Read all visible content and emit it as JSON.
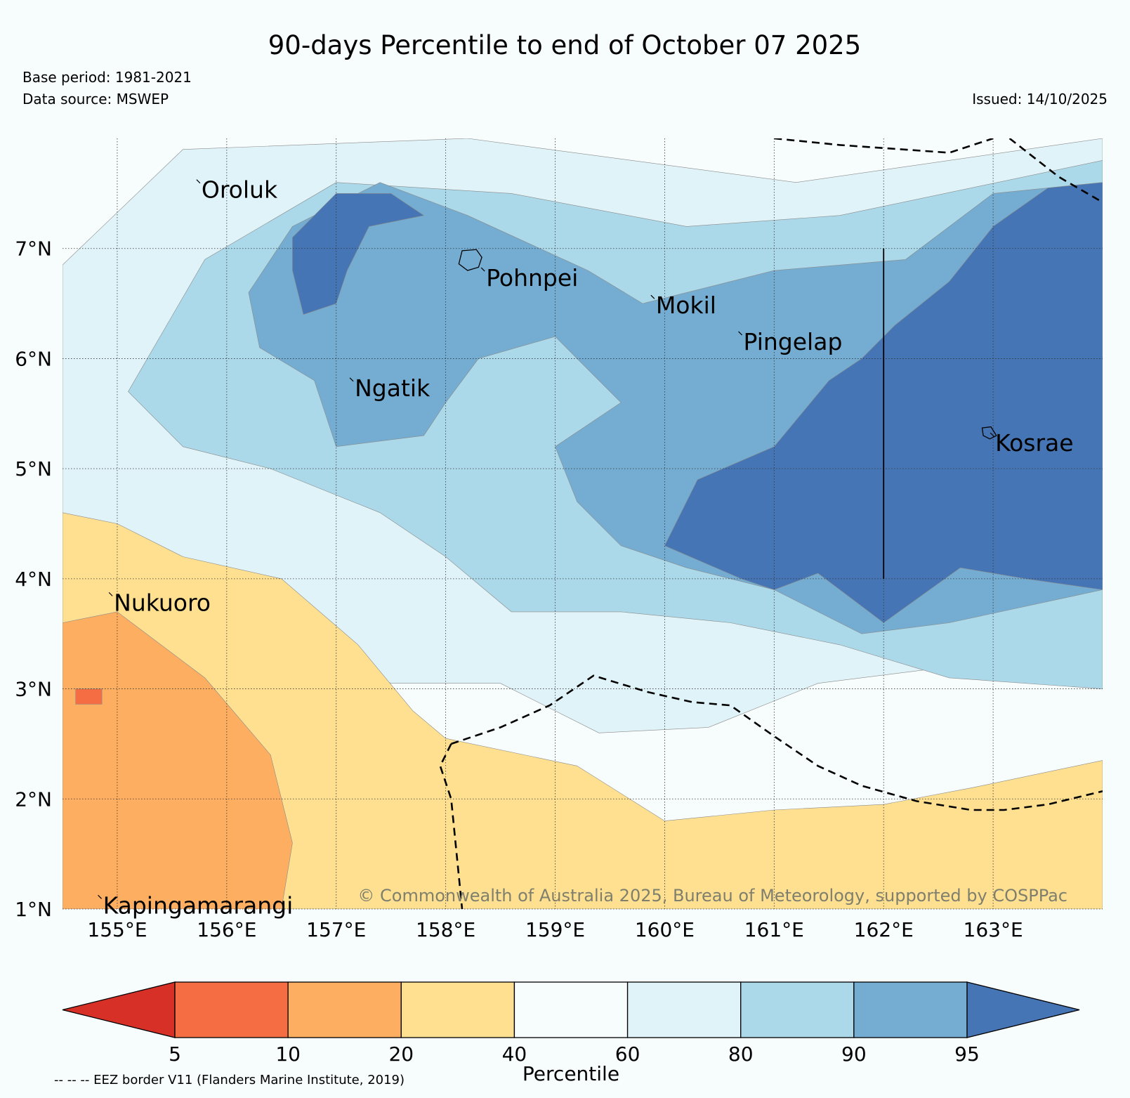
{
  "header": {
    "title": "90-days Percentile to end of October 07 2025",
    "base_period": "Base period: 1981-2021",
    "data_source": "Data source: MSWEP",
    "issued": "Issued: 14/10/2025"
  },
  "map": {
    "lon_range": [
      154.5,
      164.0
    ],
    "lat_range": [
      1.0,
      8.0
    ],
    "lon_ticks": [
      {
        "value": 155,
        "label": "155°E"
      },
      {
        "value": 156,
        "label": "156°E"
      },
      {
        "value": 157,
        "label": "157°E"
      },
      {
        "value": 158,
        "label": "158°E"
      },
      {
        "value": 159,
        "label": "159°E"
      },
      {
        "value": 160,
        "label": "160°E"
      },
      {
        "value": 161,
        "label": "161°E"
      },
      {
        "value": 162,
        "label": "162°E"
      },
      {
        "value": 163,
        "label": "163°E"
      }
    ],
    "lat_ticks": [
      {
        "value": 7,
        "label": "7°N"
      },
      {
        "value": 6,
        "label": "6°N"
      },
      {
        "value": 5,
        "label": "5°N"
      },
      {
        "value": 4,
        "label": "4°N"
      },
      {
        "value": 3,
        "label": "3°N"
      },
      {
        "value": 2,
        "label": "2°N"
      },
      {
        "value": 1,
        "label": "1°N"
      }
    ],
    "places": [
      {
        "name": "Oroluk",
        "lon": 155.75,
        "lat": 7.6
      },
      {
        "name": "Pohnpei",
        "lon": 158.35,
        "lat": 6.8
      },
      {
        "name": "Mokil",
        "lon": 159.9,
        "lat": 6.55
      },
      {
        "name": "Pingelap",
        "lon": 160.7,
        "lat": 6.22
      },
      {
        "name": "Ngatik",
        "lon": 157.15,
        "lat": 5.8
      },
      {
        "name": "Kosrae",
        "lon": 163.0,
        "lat": 5.3
      },
      {
        "name": "Nukuoro",
        "lon": 154.95,
        "lat": 3.85
      },
      {
        "name": "Kapingamarangi",
        "lon": 154.85,
        "lat": 1.1
      }
    ],
    "eez_borders": [
      [
        [
          161.0,
          8.0
        ],
        [
          161.6,
          7.94
        ],
        [
          162.6,
          7.87
        ],
        [
          163.0,
          8.0
        ]
      ],
      [
        [
          163.15,
          8.0
        ],
        [
          163.6,
          7.65
        ],
        [
          164.0,
          7.42
        ]
      ],
      [
        [
          158.05,
          2.5
        ],
        [
          158.5,
          2.65
        ],
        [
          158.95,
          2.85
        ],
        [
          159.35,
          3.12
        ],
        [
          159.85,
          2.97
        ],
        [
          160.25,
          2.88
        ],
        [
          160.6,
          2.85
        ],
        [
          161.0,
          2.57
        ],
        [
          161.4,
          2.3
        ],
        [
          161.8,
          2.12
        ],
        [
          162.3,
          1.98
        ],
        [
          162.8,
          1.9
        ],
        [
          163.1,
          1.9
        ],
        [
          163.5,
          1.95
        ],
        [
          164.0,
          2.07
        ]
      ],
      [
        [
          158.05,
          2.5
        ],
        [
          157.95,
          2.3
        ],
        [
          158.05,
          2.0
        ],
        [
          158.1,
          1.5
        ],
        [
          158.15,
          1.0
        ]
      ]
    ],
    "border_segment": {
      "lon": 162.0,
      "lat_from": 7.0,
      "lat_to": 4.0
    },
    "regions": [
      {
        "category": 5,
        "polygon": [
          [
            154.5,
            6.85
          ],
          [
            155.6,
            7.9
          ],
          [
            158.2,
            8.0
          ],
          [
            161.2,
            7.6
          ],
          [
            164.0,
            8.0
          ],
          [
            164.0,
            3.6
          ],
          [
            162.6,
            3.2
          ],
          [
            161.4,
            3.05
          ],
          [
            160.4,
            2.65
          ],
          [
            159.4,
            2.6
          ],
          [
            158.5,
            3.05
          ],
          [
            157.5,
            3.05
          ],
          [
            156.5,
            3.5
          ],
          [
            155.5,
            3.8
          ],
          [
            154.5,
            4.1
          ]
        ]
      },
      {
        "category": 6,
        "polygon": [
          [
            155.1,
            5.7
          ],
          [
            155.8,
            6.9
          ],
          [
            157.0,
            7.6
          ],
          [
            158.6,
            7.5
          ],
          [
            160.2,
            7.2
          ],
          [
            161.6,
            7.3
          ],
          [
            164.0,
            7.8
          ],
          [
            164.0,
            3.0
          ],
          [
            162.6,
            3.1
          ],
          [
            161.6,
            3.4
          ],
          [
            160.6,
            3.6
          ],
          [
            159.6,
            3.7
          ],
          [
            158.6,
            3.7
          ],
          [
            158.0,
            4.2
          ],
          [
            157.4,
            4.6
          ],
          [
            156.4,
            5.0
          ],
          [
            155.6,
            5.2
          ]
        ]
      },
      {
        "category": 7,
        "polygon": [
          [
            156.2,
            6.6
          ],
          [
            156.6,
            7.2
          ],
          [
            157.4,
            7.6
          ],
          [
            158.2,
            7.3
          ],
          [
            159.3,
            6.8
          ],
          [
            159.8,
            6.5
          ],
          [
            161.0,
            6.8
          ],
          [
            162.2,
            6.9
          ],
          [
            163.0,
            7.5
          ],
          [
            164.0,
            7.6
          ],
          [
            164.0,
            3.9
          ],
          [
            162.6,
            3.6
          ],
          [
            161.8,
            3.5
          ],
          [
            161.0,
            3.9
          ],
          [
            160.2,
            4.1
          ],
          [
            159.6,
            4.3
          ],
          [
            159.2,
            4.7
          ],
          [
            159.0,
            5.2
          ],
          [
            159.6,
            5.6
          ],
          [
            159.0,
            6.2
          ],
          [
            158.3,
            6.0
          ],
          [
            158.0,
            5.6
          ],
          [
            157.8,
            5.3
          ],
          [
            157.0,
            5.2
          ],
          [
            156.8,
            5.8
          ],
          [
            156.3,
            6.1
          ]
        ]
      },
      {
        "category": 8,
        "polygon": [
          [
            164.0,
            7.6
          ],
          [
            163.5,
            7.55
          ],
          [
            163.0,
            7.2
          ],
          [
            162.6,
            6.7
          ],
          [
            162.1,
            6.3
          ],
          [
            161.8,
            6.0
          ],
          [
            161.5,
            5.8
          ],
          [
            161.0,
            5.2
          ],
          [
            160.3,
            4.9
          ],
          [
            160.0,
            4.3
          ],
          [
            160.7,
            4.0
          ],
          [
            161.0,
            3.9
          ],
          [
            161.4,
            4.05
          ],
          [
            162.0,
            3.6
          ],
          [
            162.7,
            4.1
          ],
          [
            163.3,
            4.0
          ],
          [
            164.0,
            3.9
          ]
        ]
      },
      {
        "category": 8,
        "polygon": [
          [
            156.6,
            7.1
          ],
          [
            157.0,
            7.5
          ],
          [
            157.5,
            7.5
          ],
          [
            157.8,
            7.3
          ],
          [
            157.3,
            7.2
          ],
          [
            157.1,
            6.8
          ],
          [
            157.0,
            6.5
          ],
          [
            156.7,
            6.4
          ],
          [
            156.6,
            6.8
          ]
        ]
      },
      {
        "category": 3,
        "polygon": [
          [
            154.5,
            4.6
          ],
          [
            155.0,
            4.5
          ],
          [
            155.6,
            4.2
          ],
          [
            156.5,
            4.0
          ],
          [
            157.2,
            3.4
          ],
          [
            157.7,
            2.8
          ],
          [
            158.0,
            2.55
          ],
          [
            159.2,
            2.3
          ],
          [
            160.0,
            1.8
          ],
          [
            161.0,
            1.9
          ],
          [
            162.0,
            1.95
          ],
          [
            162.8,
            2.1
          ],
          [
            164.0,
            2.35
          ],
          [
            164.0,
            1.0
          ],
          [
            154.5,
            1.0
          ]
        ]
      },
      {
        "category": 2,
        "polygon": [
          [
            154.5,
            3.6
          ],
          [
            155.0,
            3.7
          ],
          [
            155.8,
            3.1
          ],
          [
            156.4,
            2.4
          ],
          [
            156.6,
            1.6
          ],
          [
            156.5,
            1.0
          ],
          [
            154.5,
            1.0
          ]
        ]
      },
      {
        "category": 1,
        "polygon": [
          [
            154.62,
            3.0
          ],
          [
            154.86,
            3.0
          ],
          [
            154.86,
            2.86
          ],
          [
            154.62,
            2.86
          ]
        ]
      }
    ]
  },
  "colorbar": {
    "label": "Percentile",
    "tick_labels": [
      "5",
      "10",
      "20",
      "40",
      "60",
      "80",
      "90",
      "95"
    ],
    "colors": [
      "#d73027",
      "#f46d43",
      "#fdae61",
      "#fee090",
      "#f7fcfd",
      "#e0f3f8",
      "#abd9e9",
      "#74add1",
      "#4575b4"
    ]
  },
  "copyright": "© Commonwealth of Australia 2025, Bureau of Meteorology, supported by COSPPac",
  "eez_note": "-- -- -- EEZ border V11 (Flanders Marine Institute, 2019)"
}
